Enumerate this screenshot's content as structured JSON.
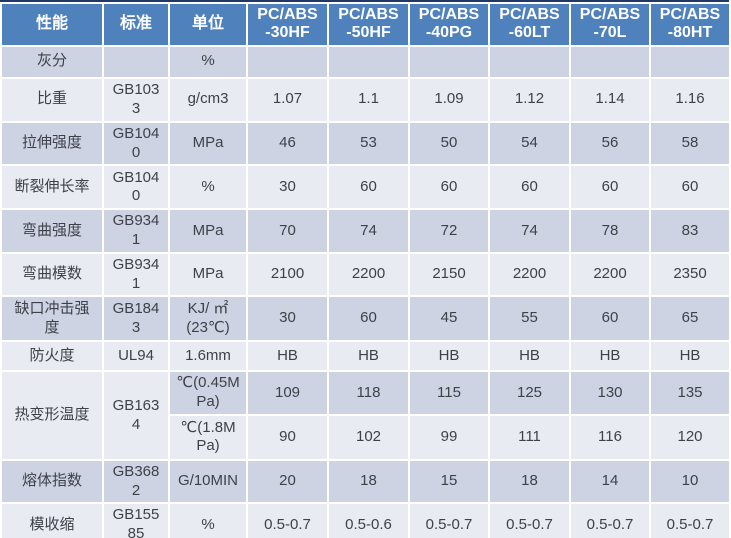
{
  "table": {
    "header": {
      "property": "性能",
      "standard": "标准",
      "unit": "单位",
      "grades": [
        "PC/ABS\n-30HF",
        "PC/ABS\n-50HF",
        "PC/ABS\n-40PG",
        "PC/ABS\n-60LT",
        "PC/ABS\n-70L",
        "PC/ABS\n-80HT"
      ]
    },
    "rows": [
      {
        "property": "灰分",
        "standard": "",
        "unit": "%",
        "values": [
          "",
          "",
          "",
          "",
          "",
          ""
        ]
      },
      {
        "property": "比重",
        "standard": "GB1033",
        "unit": "g/cm3",
        "values": [
          "1.07",
          "1.1",
          "1.09",
          "1.12",
          "1.14",
          "1.16"
        ]
      },
      {
        "property": "拉伸强度",
        "standard": "GB1040",
        "unit": "MPa",
        "values": [
          "46",
          "53",
          "50",
          "54",
          "56",
          "58"
        ]
      },
      {
        "property": "断裂伸长率",
        "standard": "GB1040",
        "unit": "%",
        "values": [
          "30",
          "60",
          "60",
          "60",
          "60",
          "60"
        ]
      },
      {
        "property": "弯曲强度",
        "standard": "GB9341",
        "unit": "MPa",
        "values": [
          "70",
          "74",
          "72",
          "74",
          "78",
          "83"
        ]
      },
      {
        "property": "弯曲模数",
        "standard": "GB9341",
        "unit": "MPa",
        "values": [
          "2100",
          "2200",
          "2150",
          "2200",
          "2200",
          "2350"
        ]
      },
      {
        "property": "缺口冲击强度",
        "standard": "GB1843",
        "unit": "KJ/ ㎡ (23℃)",
        "values": [
          "30",
          "60",
          "45",
          "55",
          "60",
          "65"
        ]
      },
      {
        "property": "防火度",
        "standard": "UL94",
        "unit": "1.6mm",
        "values": [
          "HB",
          "HB",
          "HB",
          "HB",
          "HB",
          "HB"
        ]
      },
      {
        "property": "热变形温度",
        "standard": "GB1634",
        "rowspan": 2,
        "unit": "℃(0.45MPa)",
        "values": [
          "109",
          "118",
          "115",
          "125",
          "130",
          "135"
        ]
      },
      {
        "merged": true,
        "unit": "℃(1.8MPa)",
        "values": [
          "90",
          "102",
          "99",
          "111",
          "116",
          "120"
        ]
      },
      {
        "property": "熔体指数",
        "standard": "GB3682",
        "unit": "G/10MIN",
        "values": [
          "20",
          "18",
          "15",
          "18",
          "14",
          "10"
        ]
      },
      {
        "property": "模收缩",
        "standard": "GB15585",
        "unit": "%",
        "values": [
          "0.5-0.7",
          "0.5-0.6",
          "0.5-0.7",
          "0.5-0.7",
          "0.5-0.7",
          "0.5-0.7"
        ]
      }
    ],
    "colors": {
      "header_bg": "#4F81BD",
      "header_text": "#FFFFFF",
      "band_dark": "#CDD3E2",
      "band_light": "#E9EBF3",
      "rule_navy": "#1F3864",
      "body_text": "#3F4149",
      "gridline": "#FFFFFF"
    }
  }
}
